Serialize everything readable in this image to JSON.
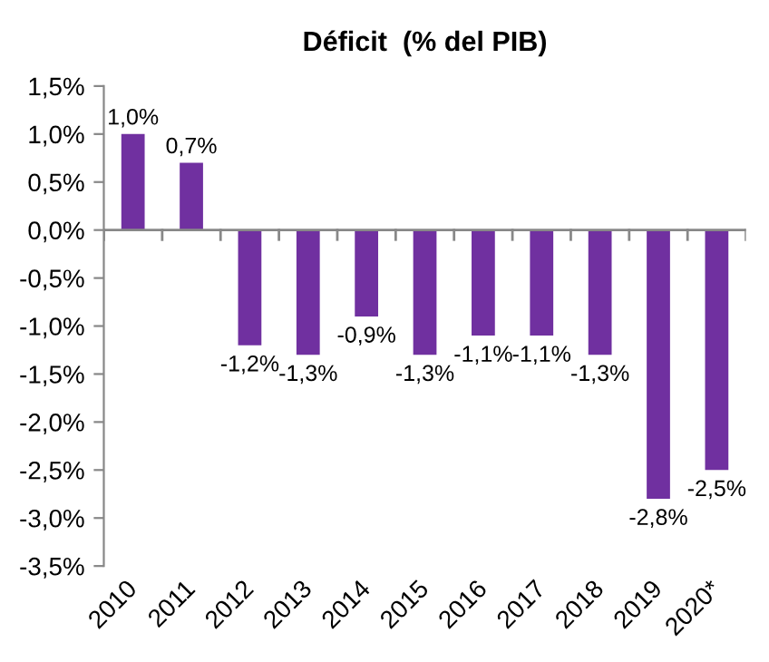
{
  "chart_data": {
    "type": "bar",
    "title": "Déficit  (% del PIB)",
    "categories": [
      "2010",
      "2011",
      "2012",
      "2013",
      "2014",
      "2015",
      "2016",
      "2017",
      "2018",
      "2019",
      "2020*"
    ],
    "values": [
      1.0,
      0.7,
      -1.2,
      -1.3,
      -0.9,
      -1.3,
      -1.1,
      -1.1,
      -1.3,
      -2.8,
      -2.5
    ],
    "value_labels": [
      "1,0%",
      "0,7%",
      "-1,2%",
      "-1,3%",
      "-0,9%",
      "-1,3%",
      "-1,1%",
      "-1,1%",
      "-1,3%",
      "-2,8%",
      "-2,5%"
    ],
    "color": "#7030a0",
    "ylim": [
      -3.5,
      1.5
    ],
    "yticks": [
      {
        "value": 1.5,
        "label": "1,5%"
      },
      {
        "value": 1.0,
        "label": "1,0%"
      },
      {
        "value": 0.5,
        "label": "0,5%"
      },
      {
        "value": 0.0,
        "label": "0,0%"
      },
      {
        "value": -0.5,
        "label": "-0,5%"
      },
      {
        "value": -1.0,
        "label": "-1,0%"
      },
      {
        "value": -1.5,
        "label": "-1,5%"
      },
      {
        "value": -2.0,
        "label": "-2,0%"
      },
      {
        "value": -2.5,
        "label": "-2,5%"
      },
      {
        "value": -3.0,
        "label": "-3,0%"
      },
      {
        "value": -3.5,
        "label": "-3,5%"
      }
    ],
    "legend": false
  }
}
